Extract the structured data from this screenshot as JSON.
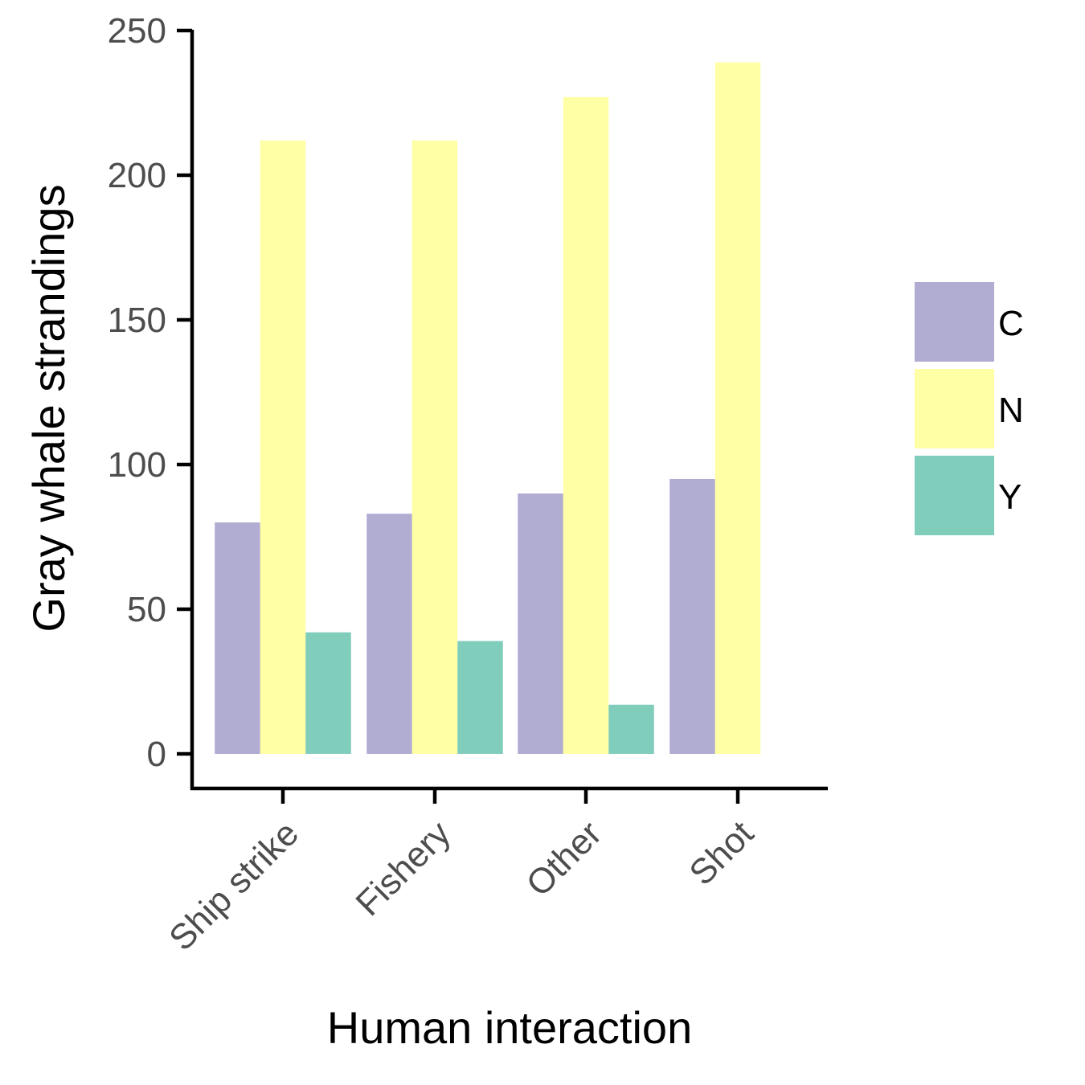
{
  "chart_data": {
    "type": "bar",
    "xlabel": "Human interaction",
    "ylabel": "Gray whale strandings",
    "categories": [
      "Ship strike",
      "Fishery",
      "Other",
      "Shot"
    ],
    "series": [
      {
        "name": "C",
        "color": "#b0acd2",
        "values": [
          80,
          83,
          90,
          95
        ]
      },
      {
        "name": "N",
        "color": "#ffffa5",
        "values": [
          212,
          212,
          227,
          239
        ]
      },
      {
        "name": "Y",
        "color": "#80cdbb",
        "values": [
          42,
          39,
          17,
          null
        ]
      }
    ],
    "ylim": [
      0,
      250
    ],
    "yticks": [
      0,
      50,
      100,
      150,
      200,
      250
    ],
    "grid": false,
    "legend_position": "right"
  }
}
